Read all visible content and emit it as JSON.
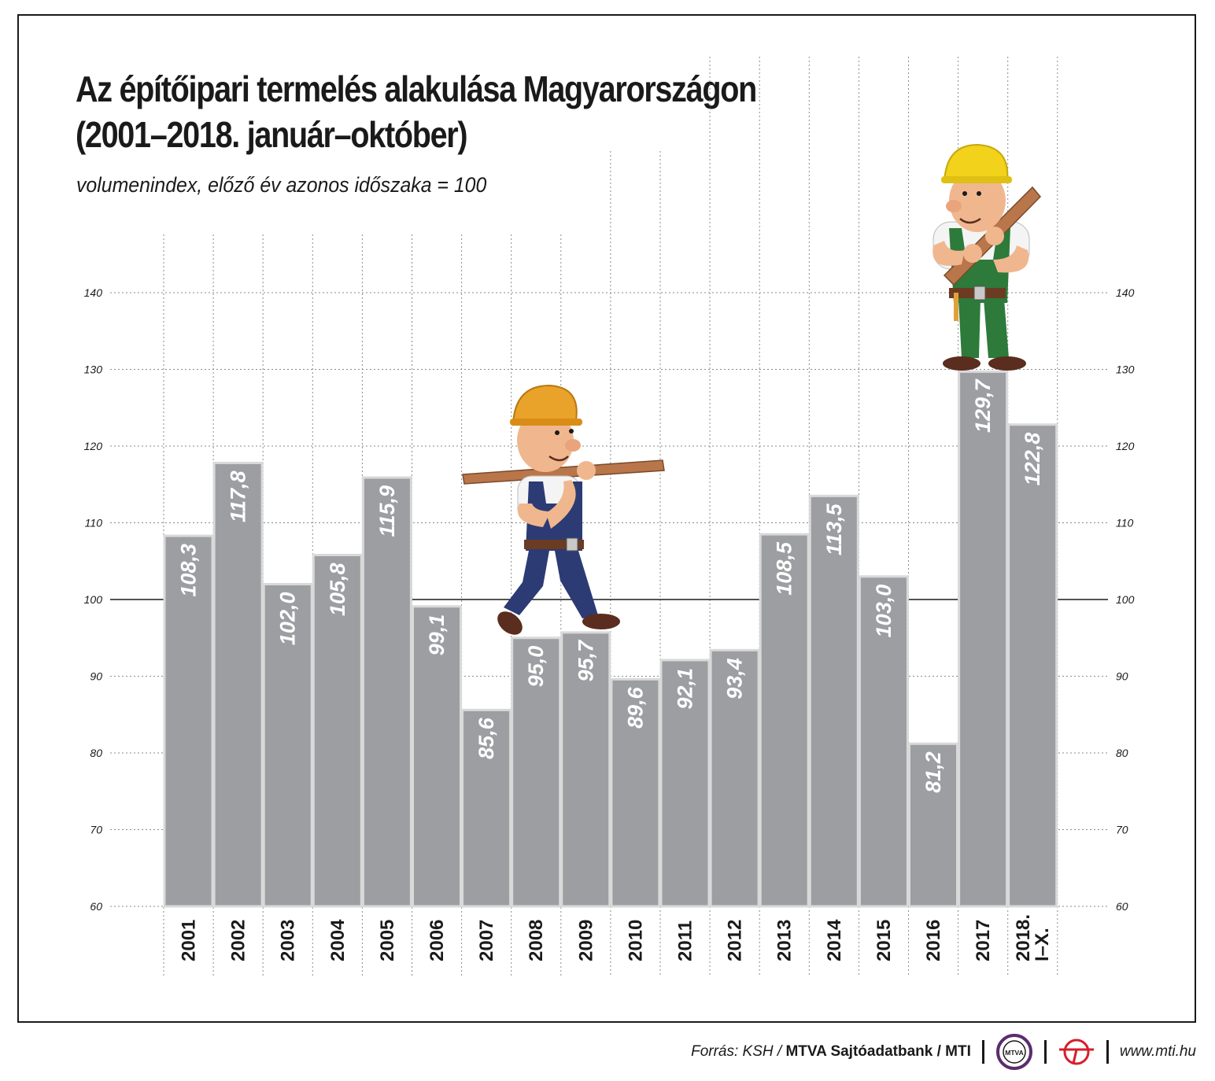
{
  "chart_data": {
    "type": "bar",
    "title_lines": [
      "Az építőipari termelés alakulása Magyarországon",
      "(2001–2018. január–október)"
    ],
    "subtitle": "volumenindex, előző év azonos időszaka = 100",
    "categories": [
      "2001",
      "2002",
      "2003",
      "2004",
      "2005",
      "2006",
      "2007",
      "2008",
      "2009",
      "2010",
      "2011",
      "2012",
      "2013",
      "2014",
      "2015",
      "2016",
      "2017",
      "2018.\nI–X."
    ],
    "values": [
      108.3,
      117.8,
      102.0,
      105.8,
      115.9,
      99.1,
      85.6,
      95.0,
      95.7,
      89.6,
      92.1,
      93.4,
      108.5,
      113.5,
      103.0,
      81.2,
      129.7,
      122.8
    ],
    "value_labels": [
      "108,3",
      "117,8",
      "102,0",
      "105,8",
      "115,9",
      "99,1",
      "85,6",
      "95,0",
      "95,7",
      "89,6",
      "92,1",
      "93,4",
      "108,5",
      "113,5",
      "103,0",
      "81,2",
      "129,7",
      "122,8"
    ],
    "ylim": [
      60,
      140
    ],
    "yticks": [
      60,
      70,
      80,
      90,
      100,
      110,
      120,
      130,
      140
    ],
    "reference_line": 100,
    "grid": true,
    "axis_labels_both_sides": true,
    "colors": {
      "bar": "#9d9ea2",
      "bar_edge": "#d9d9d9",
      "label": "#ffffff",
      "grid": "#8a8a8a",
      "text": "#1a1a1a"
    }
  },
  "illustrations": {
    "worker_left": "construction-worker-carrying-plank-icon",
    "worker_right": "construction-worker-holding-plank-icon"
  },
  "footer": {
    "source_prefix": "Forrás: KSH / ",
    "source_bold": "MTVA Sajtóadatbank / MTI",
    "logo1_text": "MTVA",
    "logo2": "mti-logo-icon",
    "url": "www.mti.hu"
  }
}
